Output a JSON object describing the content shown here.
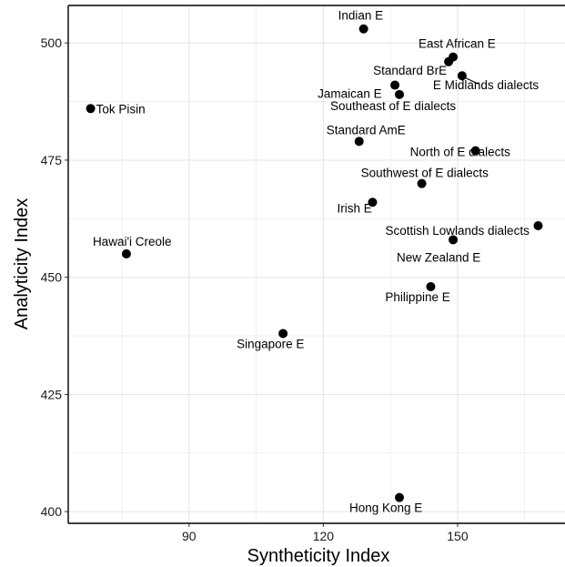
{
  "chart_data": {
    "type": "scatter",
    "xlabel": "Syntheticity Index",
    "ylabel": "Analyticity Index",
    "xlim": [
      63,
      174
    ],
    "ylim": [
      397.5,
      508
    ],
    "x_ticks": [
      90,
      120,
      150
    ],
    "y_ticks": [
      400,
      425,
      450,
      475,
      500
    ],
    "grid": true,
    "colors": {
      "point": "#000000",
      "grid": "#e6e6e6",
      "frame": "#000000"
    },
    "points": [
      {
        "name": "Indian E",
        "x": 129,
        "y": 503
      },
      {
        "name": "East African E",
        "x": 149,
        "y": 497
      },
      {
        "name": "Standard BrE",
        "x": 148,
        "y": 496
      },
      {
        "name": "E Midlands dialects",
        "x": 151,
        "y": 493
      },
      {
        "name": "Jamaican E",
        "x": 136,
        "y": 491
      },
      {
        "name": "Southeast of E dialects",
        "x": 137,
        "y": 489
      },
      {
        "name": "Tok Pisin",
        "x": 68,
        "y": 486
      },
      {
        "name": "Standard AmE",
        "x": 128,
        "y": 479
      },
      {
        "name": "North of E dialects",
        "x": 154,
        "y": 477
      },
      {
        "name": "Southwest of E dialects",
        "x": 142,
        "y": 470
      },
      {
        "name": "Irish E",
        "x": 131,
        "y": 466
      },
      {
        "name": "Scottish Lowlands dialects",
        "x": 168,
        "y": 461
      },
      {
        "name": "New Zealand E",
        "x": 149,
        "y": 458
      },
      {
        "name": "Hawai'i Creole",
        "x": 76,
        "y": 455
      },
      {
        "name": "Philippine E",
        "x": 144,
        "y": 448
      },
      {
        "name": "Singapore E",
        "x": 111,
        "y": 438
      },
      {
        "name": "Hong Kong E",
        "x": 137,
        "y": 403
      }
    ]
  }
}
